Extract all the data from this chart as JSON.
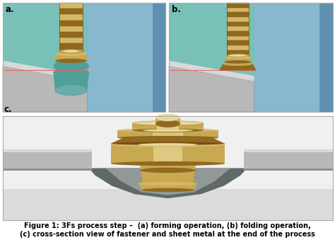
{
  "figure_width": 4.74,
  "figure_height": 3.39,
  "dpi": 100,
  "background_color": "#ffffff",
  "label_a_text": "a.",
  "label_b_text": "b.",
  "label_c_text": "c.",
  "label_fontsize": 8.5,
  "caption_line1": "Figure 1: 3Fs process step –  (a) forming operation, (b) folding operation,",
  "caption_line2": "(c) cross-section view of fastener and sheet metal at the end of the process",
  "caption_fontsize": 7.0,
  "gold": "#c8a850",
  "gold_hi": "#e8d898",
  "gold_mid": "#d4b868",
  "gold_sh": "#906820",
  "gold_dark": "#705010",
  "teal_bg": "#78c0b8",
  "teal_dark": "#50a098",
  "blue_wall": "#88b8d0",
  "blue_wall_dark": "#6090b0",
  "grey_plate": "#b8b8b8",
  "grey_plate_hi": "#d8d8d8",
  "grey_plate_dark": "#909090",
  "grey_bg": "#d0d0d0",
  "grey_bg_hi": "#e8e8e8",
  "dark_recess": "#606868",
  "white_bg": "#f0f0f0",
  "red_line": "#e06868"
}
